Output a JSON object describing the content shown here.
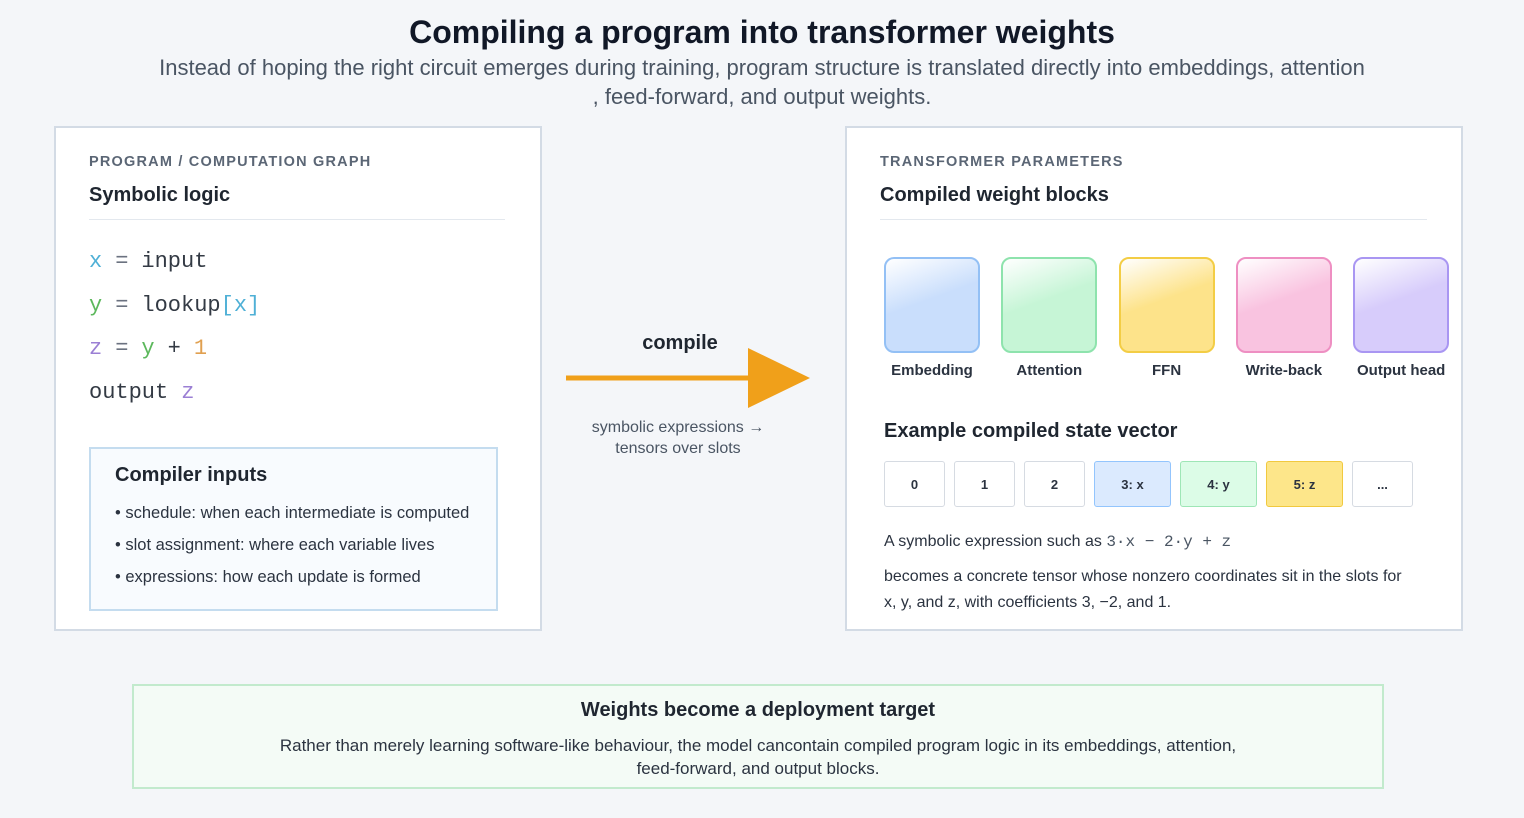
{
  "header": {
    "title": "Compiling a program into transformer weights",
    "subtitle_lines": [
      "Instead of hoping the right circuit emerges during training, program structure is translated directly into embeddings, attention",
      ", feed-forward, and output weights."
    ]
  },
  "left_panel": {
    "label": "PROGRAM / COMPUTATION GRAPH",
    "title": "Symbolic logic",
    "code_lines": [
      [
        {
          "text": "x",
          "color": "#4fb0d6"
        },
        {
          "text": "=",
          "color": "#6b7280"
        },
        {
          "text": "input",
          "color": "#333a44"
        }
      ],
      [
        {
          "text": "y",
          "color": "#5cb85c"
        },
        {
          "text": "=",
          "color": "#6b7280"
        },
        {
          "text": "lookup",
          "color": "#333a44"
        },
        {
          "text": "[x]",
          "color": "#4fb0d6"
        }
      ],
      [
        {
          "text": "z",
          "color": "#9b7fd4"
        },
        {
          "text": "=",
          "color": "#6b7280"
        },
        {
          "text": "y",
          "color": "#5cb85c"
        },
        {
          "text": "+",
          "color": "#333a44"
        },
        {
          "text": "1",
          "color": "#e0a050"
        }
      ],
      [
        {
          "text": "output",
          "color": "#333a44"
        },
        {
          "text": "z",
          "color": "#9b7fd4"
        }
      ]
    ],
    "inputs_box": {
      "title": "Compiler inputs",
      "items": [
        "schedule: when each intermediate is computed",
        "slot assignment: where each variable lives",
        "expressions: how each update is formed"
      ]
    }
  },
  "arrow": {
    "label": "compile",
    "caption_lines": [
      "symbolic expressions →",
      "tensors over slots"
    ]
  },
  "right_panel": {
    "label": "TRANSFORMER PARAMETERS",
    "title": "Compiled weight blocks",
    "blocks": [
      {
        "label": "Embedding",
        "color": "#c9defc",
        "border": "#93c0f5"
      },
      {
        "label": "Attention",
        "color": "#c6f5d6",
        "border": "#8ee3ad"
      },
      {
        "label": "FFN",
        "color": "#fde38a",
        "border": "#f3cd45"
      },
      {
        "label": "Write-back",
        "color": "#f9c3e0",
        "border": "#ee8fc2"
      },
      {
        "label": "Output head",
        "color": "#d7ccfb",
        "border": "#a996f2"
      }
    ],
    "state_title": "Example compiled state vector",
    "slots": [
      {
        "label": "0",
        "color": "#ffffff",
        "border": "#d6dbe2"
      },
      {
        "label": "1",
        "color": "#ffffff",
        "border": "#d6dbe2"
      },
      {
        "label": "2",
        "color": "#ffffff",
        "border": "#d6dbe2"
      },
      {
        "label": "3: x",
        "color": "#dbeafe",
        "border": "#93c5fd"
      },
      {
        "label": "4: y",
        "color": "#dcfce7",
        "border": "#9ee6b6"
      },
      {
        "label": "5: z",
        "color": "#fde68a",
        "border": "#f1c93f"
      },
      {
        "label": "...",
        "color": "#ffffff",
        "border": "#d6dbe2"
      }
    ],
    "expression_prefix": "A symbolic expression such as",
    "expression_code": "3·x − 2·y + z",
    "expression_lines": [
      "becomes a concrete tensor whose nonzero coordinates sit in the slots for",
      "x, y, and z, with coefficients 3, −2, and 1."
    ]
  },
  "footer": {
    "title": "Weights become a deployment target",
    "lines": [
      "Rather than merely learning software-like behaviour, the model cancontain compiled program logic in its embeddings, attention,",
      "feed-forward, and output blocks."
    ]
  }
}
